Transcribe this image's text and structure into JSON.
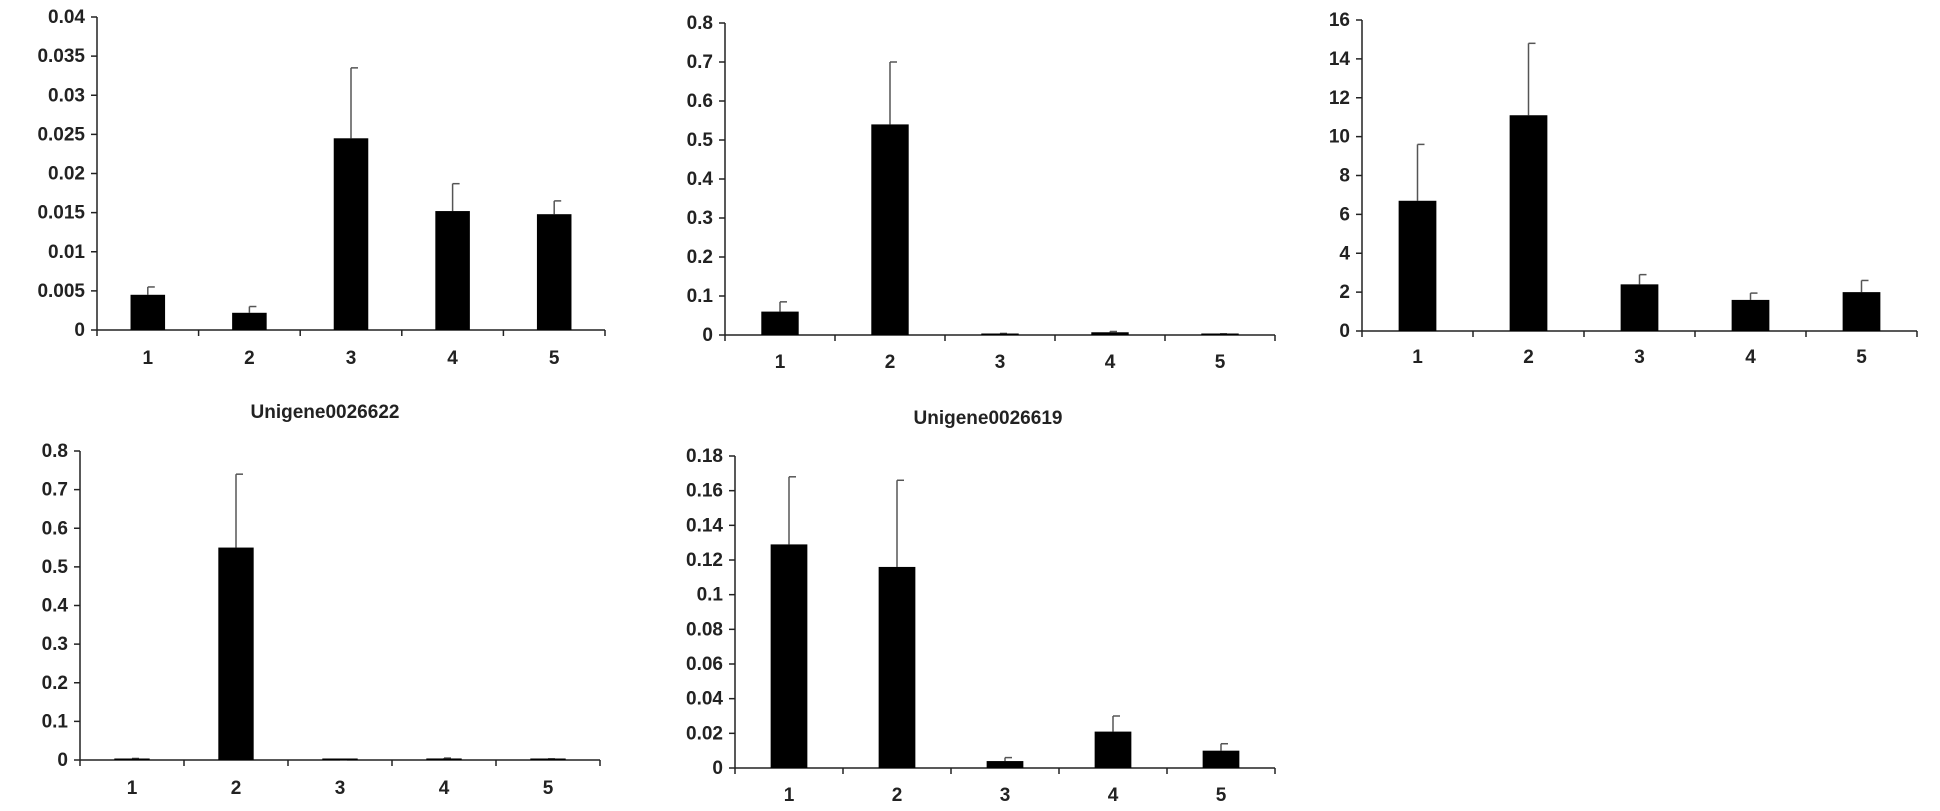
{
  "chart_data": [
    {
      "type": "bar",
      "title": "",
      "categories": [
        "1",
        "2",
        "3",
        "4",
        "5"
      ],
      "values": [
        0.0045,
        0.0022,
        0.0245,
        0.0152,
        0.0148
      ],
      "errors": [
        0.001,
        0.0008,
        0.009,
        0.0035,
        0.0017
      ],
      "ylim": [
        0,
        0.04
      ],
      "yticks": [
        "0",
        "0.005",
        "0.01",
        "0.015",
        "0.02",
        "0.025",
        "0.03",
        "0.035",
        "0.04"
      ],
      "grid": false,
      "colors": {
        "bar": "#000000",
        "error": "#555555",
        "axis": "#222222"
      }
    },
    {
      "type": "bar",
      "title": "",
      "categories": [
        "1",
        "2",
        "3",
        "4",
        "5"
      ],
      "values": [
        0.06,
        0.54,
        0.003,
        0.007,
        0.002
      ],
      "errors": [
        0.025,
        0.16,
        0.001,
        0.002,
        0.001
      ],
      "ylim": [
        0,
        0.8
      ],
      "yticks": [
        "0",
        "0.1",
        "0.2",
        "0.3",
        "0.4",
        "0.5",
        "0.6",
        "0.7",
        "0.8"
      ],
      "grid": false,
      "colors": {
        "bar": "#000000",
        "error": "#555555",
        "axis": "#222222"
      }
    },
    {
      "type": "bar",
      "title": "",
      "categories": [
        "1",
        "2",
        "3",
        "4",
        "5"
      ],
      "values": [
        6.7,
        11.1,
        2.4,
        1.6,
        2.0
      ],
      "errors": [
        2.9,
        3.7,
        0.5,
        0.35,
        0.6
      ],
      "ylim": [
        0,
        16
      ],
      "yticks": [
        "0",
        "2",
        "4",
        "6",
        "8",
        "10",
        "12",
        "14",
        "16"
      ],
      "grid": false,
      "colors": {
        "bar": "#000000",
        "error": "#555555",
        "axis": "#222222"
      }
    },
    {
      "type": "bar",
      "title": "Unigene0026622",
      "categories": [
        "1",
        "2",
        "3",
        "4",
        "5"
      ],
      "values": [
        0.003,
        0.55,
        0.0005,
        0.004,
        0.002
      ],
      "errors": [
        0.001,
        0.19,
        0.0005,
        0.001,
        0.001
      ],
      "ylim": [
        0,
        0.8
      ],
      "yticks": [
        "0",
        "0.1",
        "0.2",
        "0.3",
        "0.4",
        "0.5",
        "0.6",
        "0.7",
        "0.8"
      ],
      "grid": false,
      "colors": {
        "bar": "#000000",
        "error": "#555555",
        "axis": "#222222"
      }
    },
    {
      "type": "bar",
      "title": "Unigene0026619",
      "categories": [
        "1",
        "2",
        "3",
        "4",
        "5"
      ],
      "values": [
        0.129,
        0.116,
        0.004,
        0.021,
        0.01
      ],
      "errors": [
        0.039,
        0.05,
        0.002,
        0.009,
        0.004
      ],
      "ylim": [
        0,
        0.18
      ],
      "yticks": [
        "0",
        "0.02",
        "0.04",
        "0.06",
        "0.08",
        "0.1",
        "0.12",
        "0.14",
        "0.16",
        "0.18"
      ],
      "grid": false,
      "colors": {
        "bar": "#000000",
        "error": "#555555",
        "axis": "#222222"
      }
    }
  ]
}
